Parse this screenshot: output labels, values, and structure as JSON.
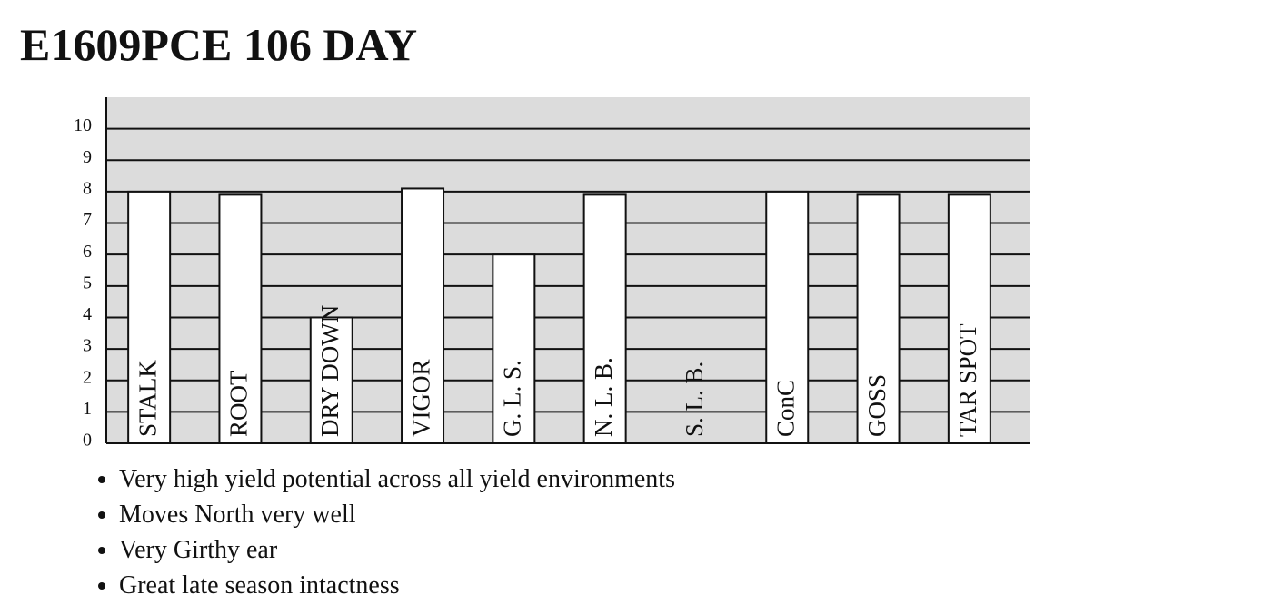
{
  "chart_data": {
    "type": "bar",
    "title": "E1609PCE 106 DAY",
    "categories": [
      "STALK",
      "ROOT",
      "DRY DOWN",
      "VIGOR",
      "G. L. S.",
      "N. L. B.",
      "S. L. B.",
      "ConC",
      "GOSS",
      "TAR SPOT"
    ],
    "values": [
      8,
      7.9,
      4,
      8.1,
      6,
      7.9,
      null,
      8,
      7.9,
      7.9
    ],
    "color": "#ffffff",
    "background": "#dcdcdc",
    "ylim": [
      0,
      11
    ],
    "yticks": [
      0,
      1,
      2,
      3,
      4,
      5,
      6,
      7,
      8,
      9,
      10
    ],
    "grid": true
  },
  "bullets": [
    "Very high yield potential across all yield environments",
    "Moves North very well",
    "Very Girthy ear",
    "Great late season intactness"
  ]
}
